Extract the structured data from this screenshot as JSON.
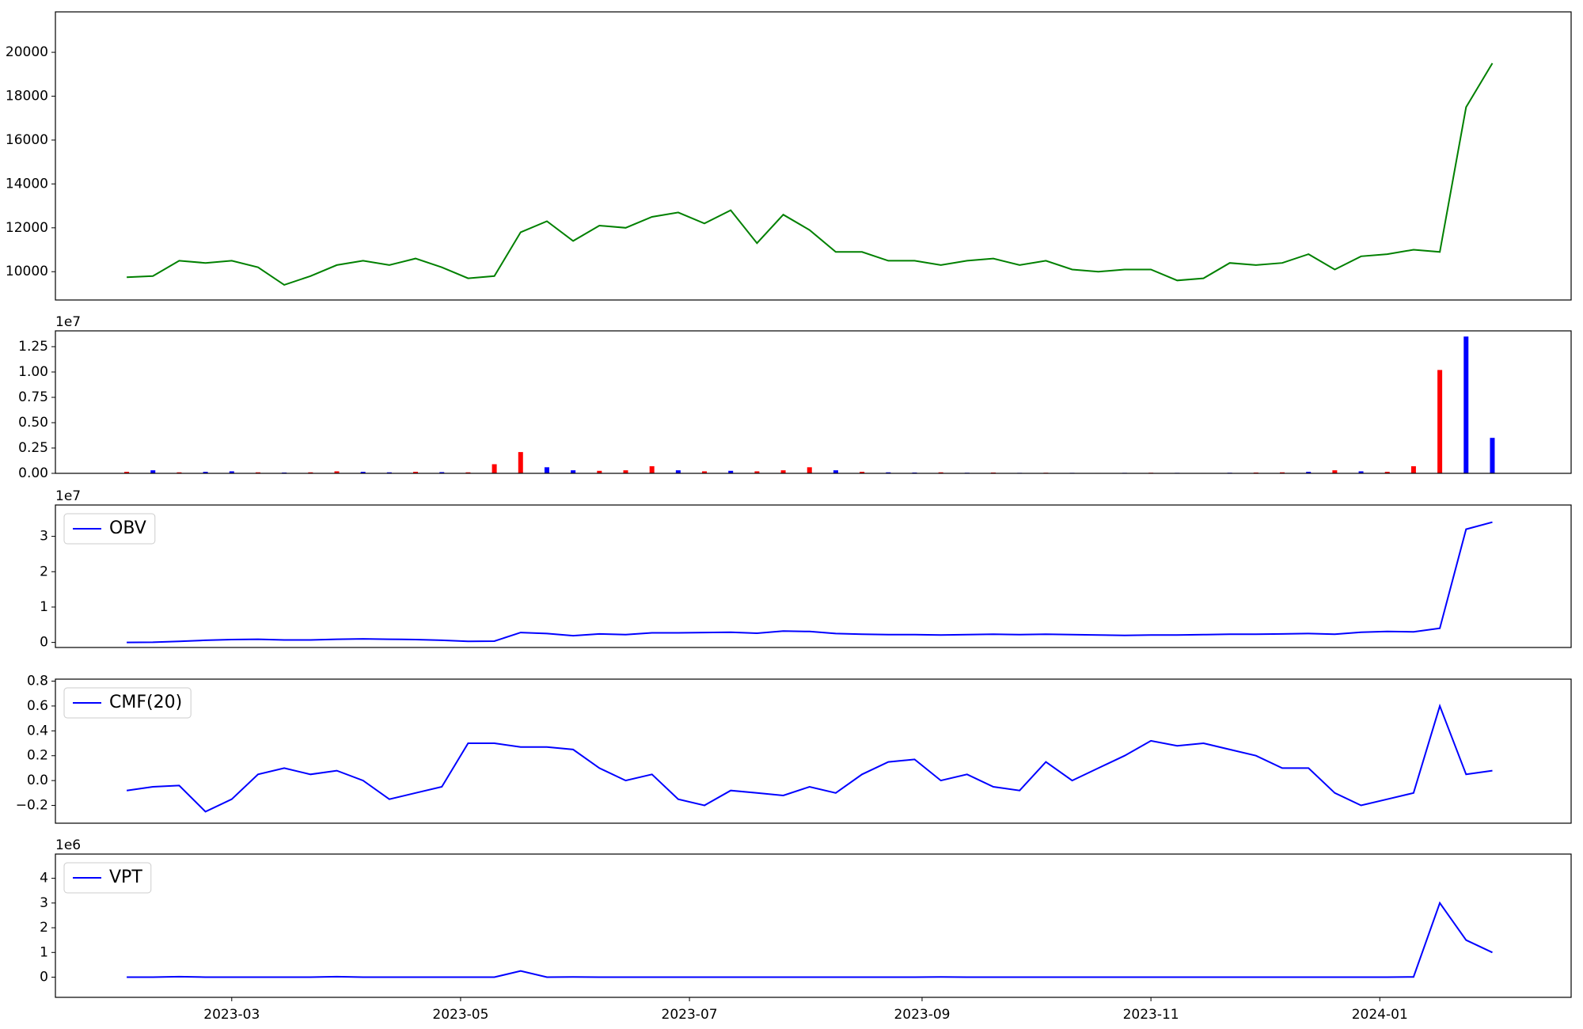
{
  "chart_data": [
    {
      "type": "line",
      "xlim": [
        12,
        416
      ],
      "ylim": [
        8710,
        21843
      ],
      "yticks": [
        10000,
        12000,
        14000,
        16000,
        18000,
        20000
      ],
      "x": [
        31,
        38,
        45,
        52,
        59,
        66,
        73,
        80,
        87,
        94,
        101,
        108,
        115,
        122,
        129,
        136,
        143,
        150,
        157,
        164,
        171,
        178,
        185,
        192,
        199,
        206,
        213,
        220,
        227,
        234,
        241,
        248,
        255,
        262,
        269,
        276,
        283,
        290,
        297,
        304,
        311,
        318,
        325,
        332,
        339,
        346,
        353,
        360,
        367,
        374,
        381,
        388,
        395
      ],
      "series": [
        {
          "color": "#008000",
          "values": [
            9750,
            9800,
            10500,
            10400,
            10500,
            10200,
            9400,
            9800,
            10300,
            10500,
            10300,
            10600,
            10200,
            9700,
            9800,
            11800,
            12300,
            11400,
            12100,
            12000,
            12500,
            12700,
            12200,
            12800,
            11300,
            12600,
            11900,
            10900,
            10900,
            10500,
            10500,
            10300,
            10500,
            10600,
            10300,
            10500,
            10100,
            10000,
            10100,
            10100,
            9600,
            9700,
            10400,
            10300,
            10400,
            10800,
            10100,
            10700,
            10800,
            11000,
            10900,
            17500,
            19500
          ]
        }
      ]
    },
    {
      "type": "bar",
      "xlim": [
        12,
        416
      ],
      "ylim": [
        0,
        14060000
      ],
      "offset_label": "1e7",
      "yticks": [
        {
          "value": 0,
          "label": "0.00"
        },
        {
          "value": 2500000,
          "label": "0.25"
        },
        {
          "value": 5000000,
          "label": "0.50"
        },
        {
          "value": 7500000,
          "label": "0.75"
        },
        {
          "value": 10000000,
          "label": "1.00"
        },
        {
          "value": 12500000,
          "label": "1.25"
        }
      ],
      "x": [
        31,
        38,
        45,
        52,
        59,
        66,
        73,
        80,
        87,
        94,
        101,
        108,
        115,
        122,
        129,
        136,
        143,
        150,
        157,
        164,
        171,
        178,
        185,
        192,
        199,
        206,
        213,
        220,
        227,
        234,
        241,
        248,
        255,
        262,
        269,
        276,
        283,
        290,
        297,
        304,
        311,
        318,
        325,
        332,
        339,
        346,
        353,
        360,
        367,
        374,
        381,
        388,
        395
      ],
      "values": [
        150000,
        300000,
        100000,
        150000,
        200000,
        100000,
        80000,
        100000,
        200000,
        150000,
        100000,
        150000,
        120000,
        100000,
        900000,
        2100000,
        600000,
        300000,
        250000,
        300000,
        700000,
        300000,
        200000,
        250000,
        200000,
        300000,
        600000,
        300000,
        150000,
        100000,
        80000,
        100000,
        60000,
        80000,
        50000,
        60000,
        50000,
        40000,
        50000,
        60000,
        50000,
        40000,
        60000,
        80000,
        100000,
        150000,
        300000,
        200000,
        150000,
        700000,
        10200000,
        13500000,
        3500000
      ],
      "colors": [
        "#ff0000",
        "#0000ff",
        "#ff0000",
        "#0000ff",
        "#0000ff",
        "#ff0000",
        "#0000ff",
        "#ff0000",
        "#ff0000",
        "#0000ff",
        "#0000ff",
        "#ff0000",
        "#0000ff",
        "#ff0000",
        "#ff0000",
        "#ff0000",
        "#0000ff",
        "#0000ff",
        "#ff0000",
        "#ff0000",
        "#ff0000",
        "#0000ff",
        "#ff0000",
        "#0000ff",
        "#ff0000",
        "#ff0000",
        "#ff0000",
        "#0000ff",
        "#ff0000",
        "#0000ff",
        "#0000ff",
        "#ff0000",
        "#0000ff",
        "#ff0000",
        "#0000ff",
        "#ff0000",
        "#0000ff",
        "#ff0000",
        "#0000ff",
        "#ff0000",
        "#0000ff",
        "#ff0000",
        "#0000ff",
        "#ff0000",
        "#ff0000",
        "#0000ff",
        "#ff0000",
        "#0000ff",
        "#ff0000",
        "#ff0000",
        "#ff0000",
        "#0000ff",
        "#0000ff"
      ]
    },
    {
      "type": "line",
      "xlim": [
        12,
        416
      ],
      "ylim": [
        -1430000,
        38860000
      ],
      "offset_label": "1e7",
      "legend": "upper left",
      "yticks": [
        0,
        {
          "value": 10000000,
          "label": "1"
        },
        {
          "value": 20000000,
          "label": "2"
        },
        {
          "value": 30000000,
          "label": "3"
        }
      ],
      "x": [
        31,
        38,
        45,
        52,
        59,
        66,
        73,
        80,
        87,
        94,
        101,
        108,
        115,
        122,
        129,
        136,
        143,
        150,
        157,
        164,
        171,
        178,
        185,
        192,
        199,
        206,
        213,
        220,
        227,
        234,
        241,
        248,
        255,
        262,
        269,
        276,
        283,
        290,
        297,
        304,
        311,
        318,
        325,
        332,
        339,
        346,
        353,
        360,
        367,
        374,
        381,
        388,
        395
      ],
      "series": [
        {
          "name": "OBV",
          "color": "#0000ff",
          "values": [
            0,
            50000,
            300000,
            600000,
            800000,
            900000,
            700000,
            700000,
            900000,
            1000000,
            900000,
            800000,
            600000,
            300000,
            350000,
            2800000,
            2500000,
            1900000,
            2400000,
            2200000,
            2700000,
            2700000,
            2800000,
            2900000,
            2600000,
            3200000,
            3100000,
            2500000,
            2300000,
            2200000,
            2200000,
            2100000,
            2200000,
            2300000,
            2200000,
            2300000,
            2200000,
            2100000,
            2000000,
            2100000,
            2100000,
            2200000,
            2300000,
            2300000,
            2400000,
            2500000,
            2300000,
            2900000,
            3100000,
            3000000,
            4000000,
            32000000,
            34000000
          ]
        }
      ]
    },
    {
      "type": "line",
      "xlim": [
        12,
        416
      ],
      "ylim": [
        -0.343,
        0.816
      ],
      "legend": "upper left",
      "yticks": [
        {
          "value": -0.2,
          "label": "−0.2"
        },
        {
          "value": 0,
          "label": "0.0"
        },
        0.2,
        0.4,
        0.6,
        0.8
      ],
      "x": [
        31,
        38,
        45,
        52,
        59,
        66,
        73,
        80,
        87,
        94,
        101,
        108,
        115,
        122,
        129,
        136,
        143,
        150,
        157,
        164,
        171,
        178,
        185,
        192,
        199,
        206,
        213,
        220,
        227,
        234,
        241,
        248,
        255,
        262,
        269,
        276,
        283,
        290,
        297,
        304,
        311,
        318,
        325,
        332,
        339,
        346,
        353,
        360,
        367,
        374,
        381,
        388,
        395
      ],
      "series": [
        {
          "name": "CMF(20)",
          "color": "#0000ff",
          "values": [
            -0.08,
            -0.05,
            -0.04,
            -0.25,
            -0.15,
            0.05,
            0.1,
            0.05,
            0.08,
            0.0,
            -0.15,
            -0.1,
            -0.05,
            0.3,
            0.3,
            0.27,
            0.27,
            0.25,
            0.1,
            0.0,
            0.05,
            -0.15,
            -0.2,
            -0.08,
            -0.1,
            -0.12,
            -0.05,
            -0.1,
            0.05,
            0.15,
            0.17,
            0.0,
            0.05,
            -0.05,
            -0.08,
            0.15,
            0.0,
            0.1,
            0.2,
            0.32,
            0.28,
            0.3,
            0.25,
            0.2,
            0.1,
            0.1,
            -0.1,
            -0.2,
            -0.15,
            -0.1,
            0.6,
            0.05,
            0.08
          ]
        }
      ]
    },
    {
      "type": "line",
      "xlim": [
        12,
        416
      ],
      "ylim": [
        -816000,
        4980000
      ],
      "offset_label": "1e6",
      "legend": "upper left",
      "yticks": [
        0,
        {
          "value": 1000000,
          "label": "1"
        },
        {
          "value": 2000000,
          "label": "2"
        },
        {
          "value": 3000000,
          "label": "3"
        },
        {
          "value": 4000000,
          "label": "4"
        }
      ],
      "xticks": [
        {
          "value": 59,
          "label": "2023-03"
        },
        {
          "value": 120,
          "label": "2023-05"
        },
        {
          "value": 181,
          "label": "2023-07"
        },
        {
          "value": 243,
          "label": "2023-09"
        },
        {
          "value": 304,
          "label": "2023-11"
        },
        {
          "value": 365,
          "label": "2024-01"
        }
      ],
      "x": [
        31,
        38,
        45,
        52,
        59,
        66,
        73,
        80,
        87,
        94,
        101,
        108,
        115,
        122,
        129,
        136,
        143,
        150,
        157,
        164,
        171,
        178,
        185,
        192,
        199,
        206,
        213,
        220,
        227,
        234,
        241,
        248,
        255,
        262,
        269,
        276,
        283,
        290,
        297,
        304,
        311,
        318,
        325,
        332,
        339,
        346,
        353,
        360,
        367,
        374,
        381,
        388,
        395
      ],
      "series": [
        {
          "name": "VPT",
          "color": "#0000ff",
          "values": [
            0,
            0,
            20000,
            0,
            0,
            0,
            0,
            0,
            20000,
            0,
            0,
            0,
            0,
            0,
            0,
            250000,
            0,
            10000,
            0,
            0,
            0,
            0,
            0,
            0,
            0,
            0,
            0,
            0,
            0,
            0,
            0,
            10000,
            0,
            0,
            0,
            0,
            0,
            0,
            0,
            0,
            0,
            0,
            0,
            0,
            0,
            0,
            0,
            0,
            0,
            10000,
            3000000,
            1500000,
            1000000
          ]
        }
      ]
    }
  ]
}
